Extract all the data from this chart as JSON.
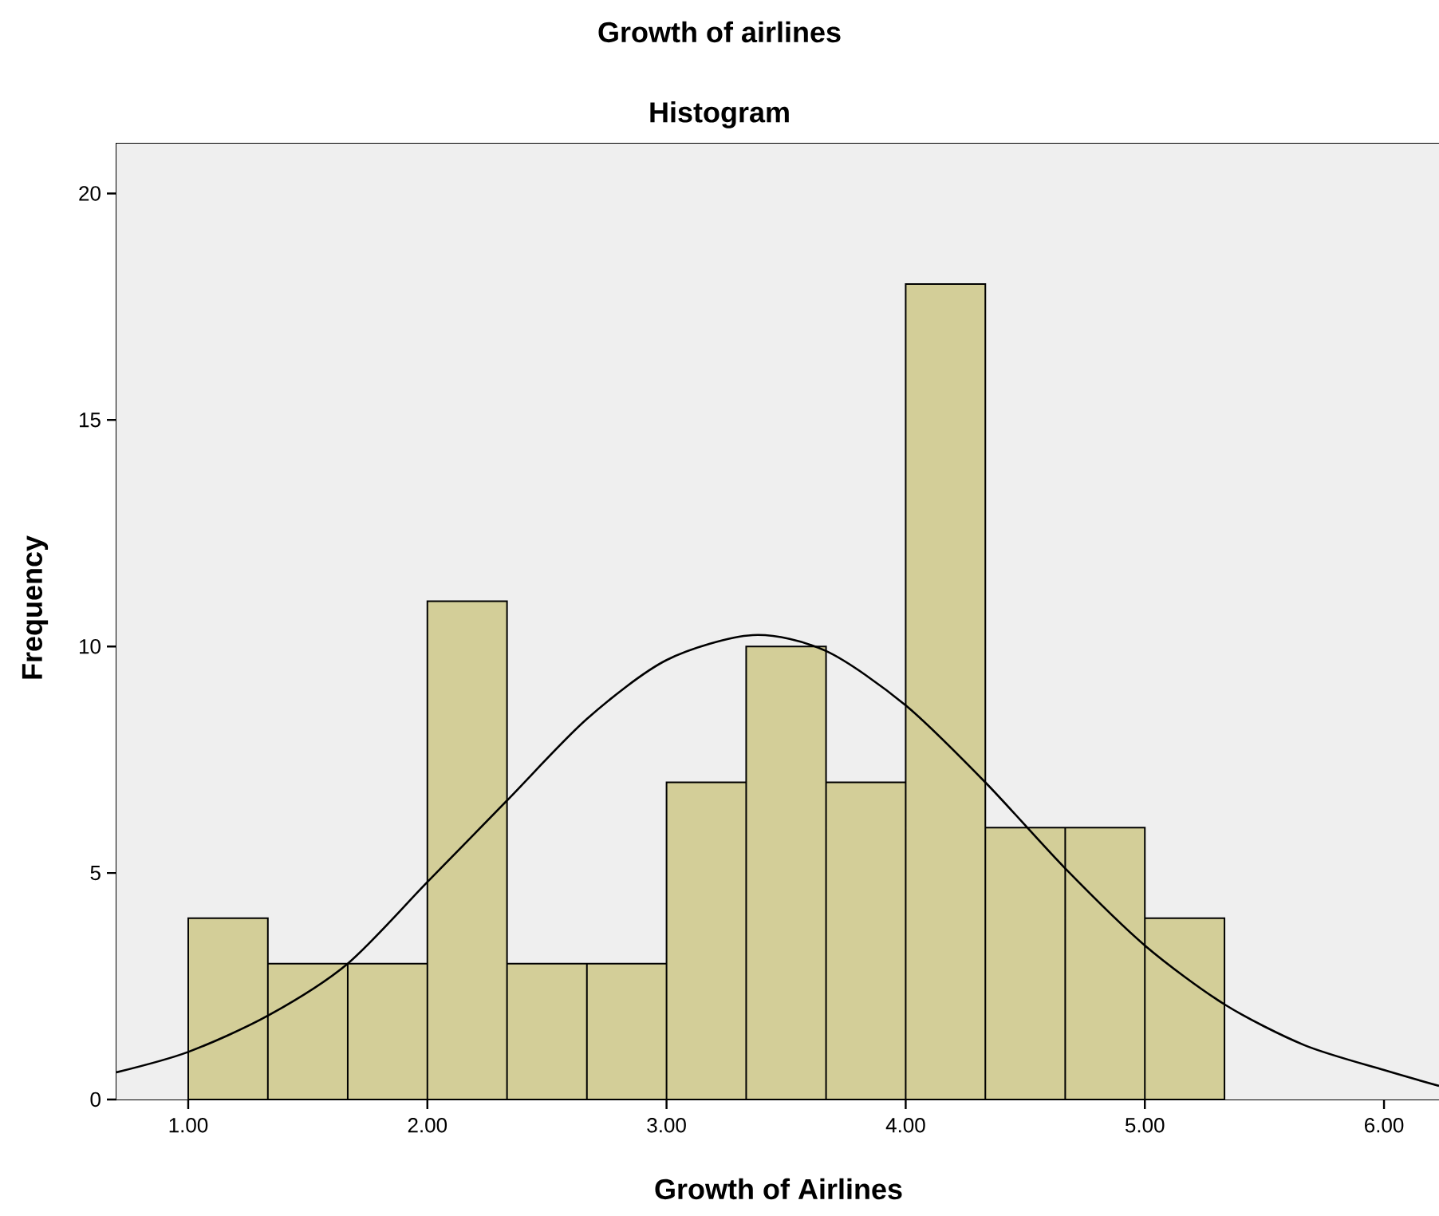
{
  "chart_data": {
    "type": "histogram",
    "title": "Growth of airlines",
    "subtitle": "Histogram",
    "xlabel": "Growth of Airlines",
    "ylabel": "Frequency",
    "series": [
      {
        "color": "#d3ce98",
        "bins": [
          1.0,
          1.333,
          1.667,
          2.0,
          2.333,
          2.667,
          3.0,
          3.333,
          3.667,
          4.0,
          4.333,
          4.667,
          5.0,
          5.333
        ],
        "values": [
          4,
          3,
          3,
          11,
          3,
          3,
          7,
          10,
          7,
          18,
          6,
          6,
          4
        ]
      },
      {
        "type": "line",
        "color": "#000000",
        "x": [
          0.7,
          1.0,
          1.333,
          1.667,
          2.0,
          2.333,
          2.667,
          3.0,
          3.36,
          3.667,
          4.0,
          4.333,
          4.667,
          5.0,
          5.333,
          5.667,
          6.0,
          6.23
        ],
        "values": [
          0.6,
          1.05,
          1.85,
          3.0,
          4.8,
          6.6,
          8.4,
          9.7,
          10.25,
          9.9,
          8.7,
          7.0,
          5.1,
          3.4,
          2.1,
          1.2,
          0.65,
          0.3
        ]
      }
    ],
    "xlim": [
      0.7,
      6.23
    ],
    "ylim": [
      0,
      21.1
    ],
    "xticks": [
      {
        "value": 1,
        "label": "1.00"
      },
      {
        "value": 2,
        "label": "2.00"
      },
      {
        "value": 3,
        "label": "3.00"
      },
      {
        "value": 4,
        "label": "4.00"
      },
      {
        "value": 5,
        "label": "5.00"
      },
      {
        "value": 6,
        "label": "6.00"
      }
    ],
    "yticks": [
      0,
      5,
      10,
      15,
      20
    ]
  }
}
